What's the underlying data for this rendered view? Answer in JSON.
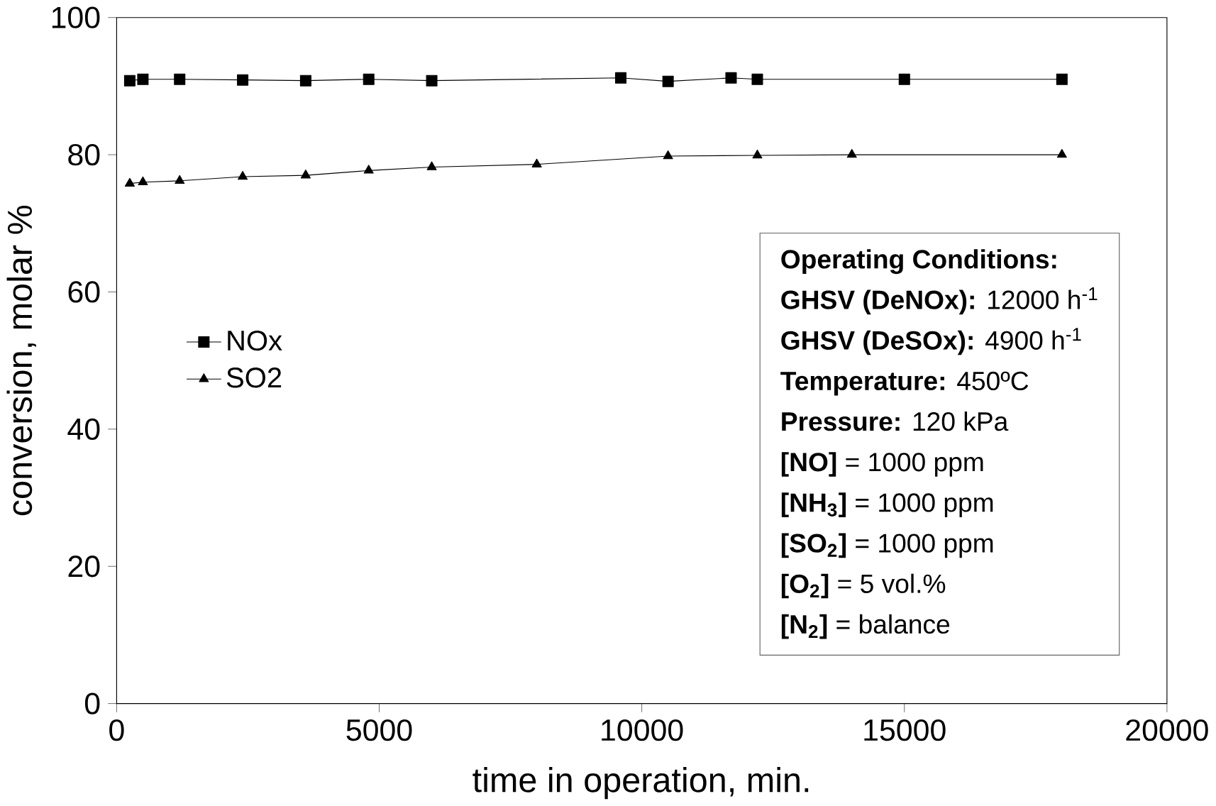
{
  "chart_data": {
    "type": "line",
    "xlabel": "time in operation, min.",
    "ylabel": "conversion, molar %",
    "series": [
      {
        "name": "NOx",
        "color": "#000000",
        "marker": "square",
        "x": [
          250,
          500,
          1200,
          2400,
          3600,
          4800,
          6000,
          9600,
          10500,
          11700,
          12200,
          15000,
          18000
        ],
        "values": [
          90.8,
          91,
          91,
          90.9,
          90.8,
          91,
          90.8,
          91.2,
          90.7,
          91.2,
          91,
          91,
          91
        ]
      },
      {
        "name": "SO2",
        "color": "#000000",
        "marker": "triangle",
        "x": [
          250,
          500,
          1200,
          2400,
          3600,
          4800,
          6000,
          8000,
          10500,
          12200,
          14000,
          18000
        ],
        "values": [
          75.8,
          76,
          76.2,
          76.8,
          77,
          77.7,
          78.2,
          78.6,
          79.8,
          79.9,
          80,
          80
        ]
      }
    ],
    "xlim": [
      0,
      20000
    ],
    "xticks": [
      0,
      5000,
      10000,
      15000,
      20000
    ],
    "ylim": [
      0,
      100
    ],
    "yticks": [
      0,
      20,
      40,
      60,
      80,
      100
    ],
    "legend": "left",
    "grid": false,
    "line_style": "solid",
    "annotations": [
      "**Operating Conditions:**",
      "**GHSV (DeNOx):** 12000 h$^{-1}$",
      "**GHSV (DeSOx):**   4900 h$^{-1}$",
      "**Temperature:** 450ºC",
      "**Pressure:** 120 kPa",
      "**[NO]** = 1000 ppm",
      "**[NH$_{3}$]** = 1000 ppm",
      "**[SO$_{2}$]** = 1000 ppm",
      "**[O$_{2}$]** = 5 vol.%",
      "**[N$_{2}$]** = balance"
    ]
  }
}
